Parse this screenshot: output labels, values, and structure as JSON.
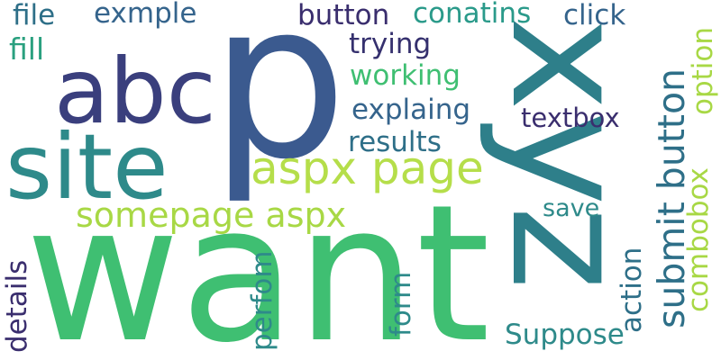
{
  "words": {
    "want": "want",
    "p": "p",
    "xyz": "xyz",
    "site": "site",
    "abc": "abc",
    "aspx_page": "aspx page",
    "somepage_aspx": "somepage aspx",
    "submit_button": "submit button",
    "button": "button",
    "conatins": "conatins",
    "click": "click",
    "exmple": "exmple",
    "file": "file",
    "fill": "fill",
    "trying": "trying",
    "working": "working",
    "explaing": "explaing",
    "textbox": "textbox",
    "option": "option",
    "results": "results",
    "save": "save",
    "combobox": "combobox",
    "action": "action",
    "form": "form",
    "perfom": "perfom",
    "details": "details",
    "suppose": "Suppose"
  },
  "colors": {
    "navy": "#3b5a8f",
    "purple": "#3a2e6e",
    "teal": "#2e7f8a",
    "teal_dark": "#2a6f88",
    "green": "#3fbf72",
    "lime": "#a8d845",
    "lime_light": "#b5de4a",
    "blue_mid": "#35648c"
  }
}
